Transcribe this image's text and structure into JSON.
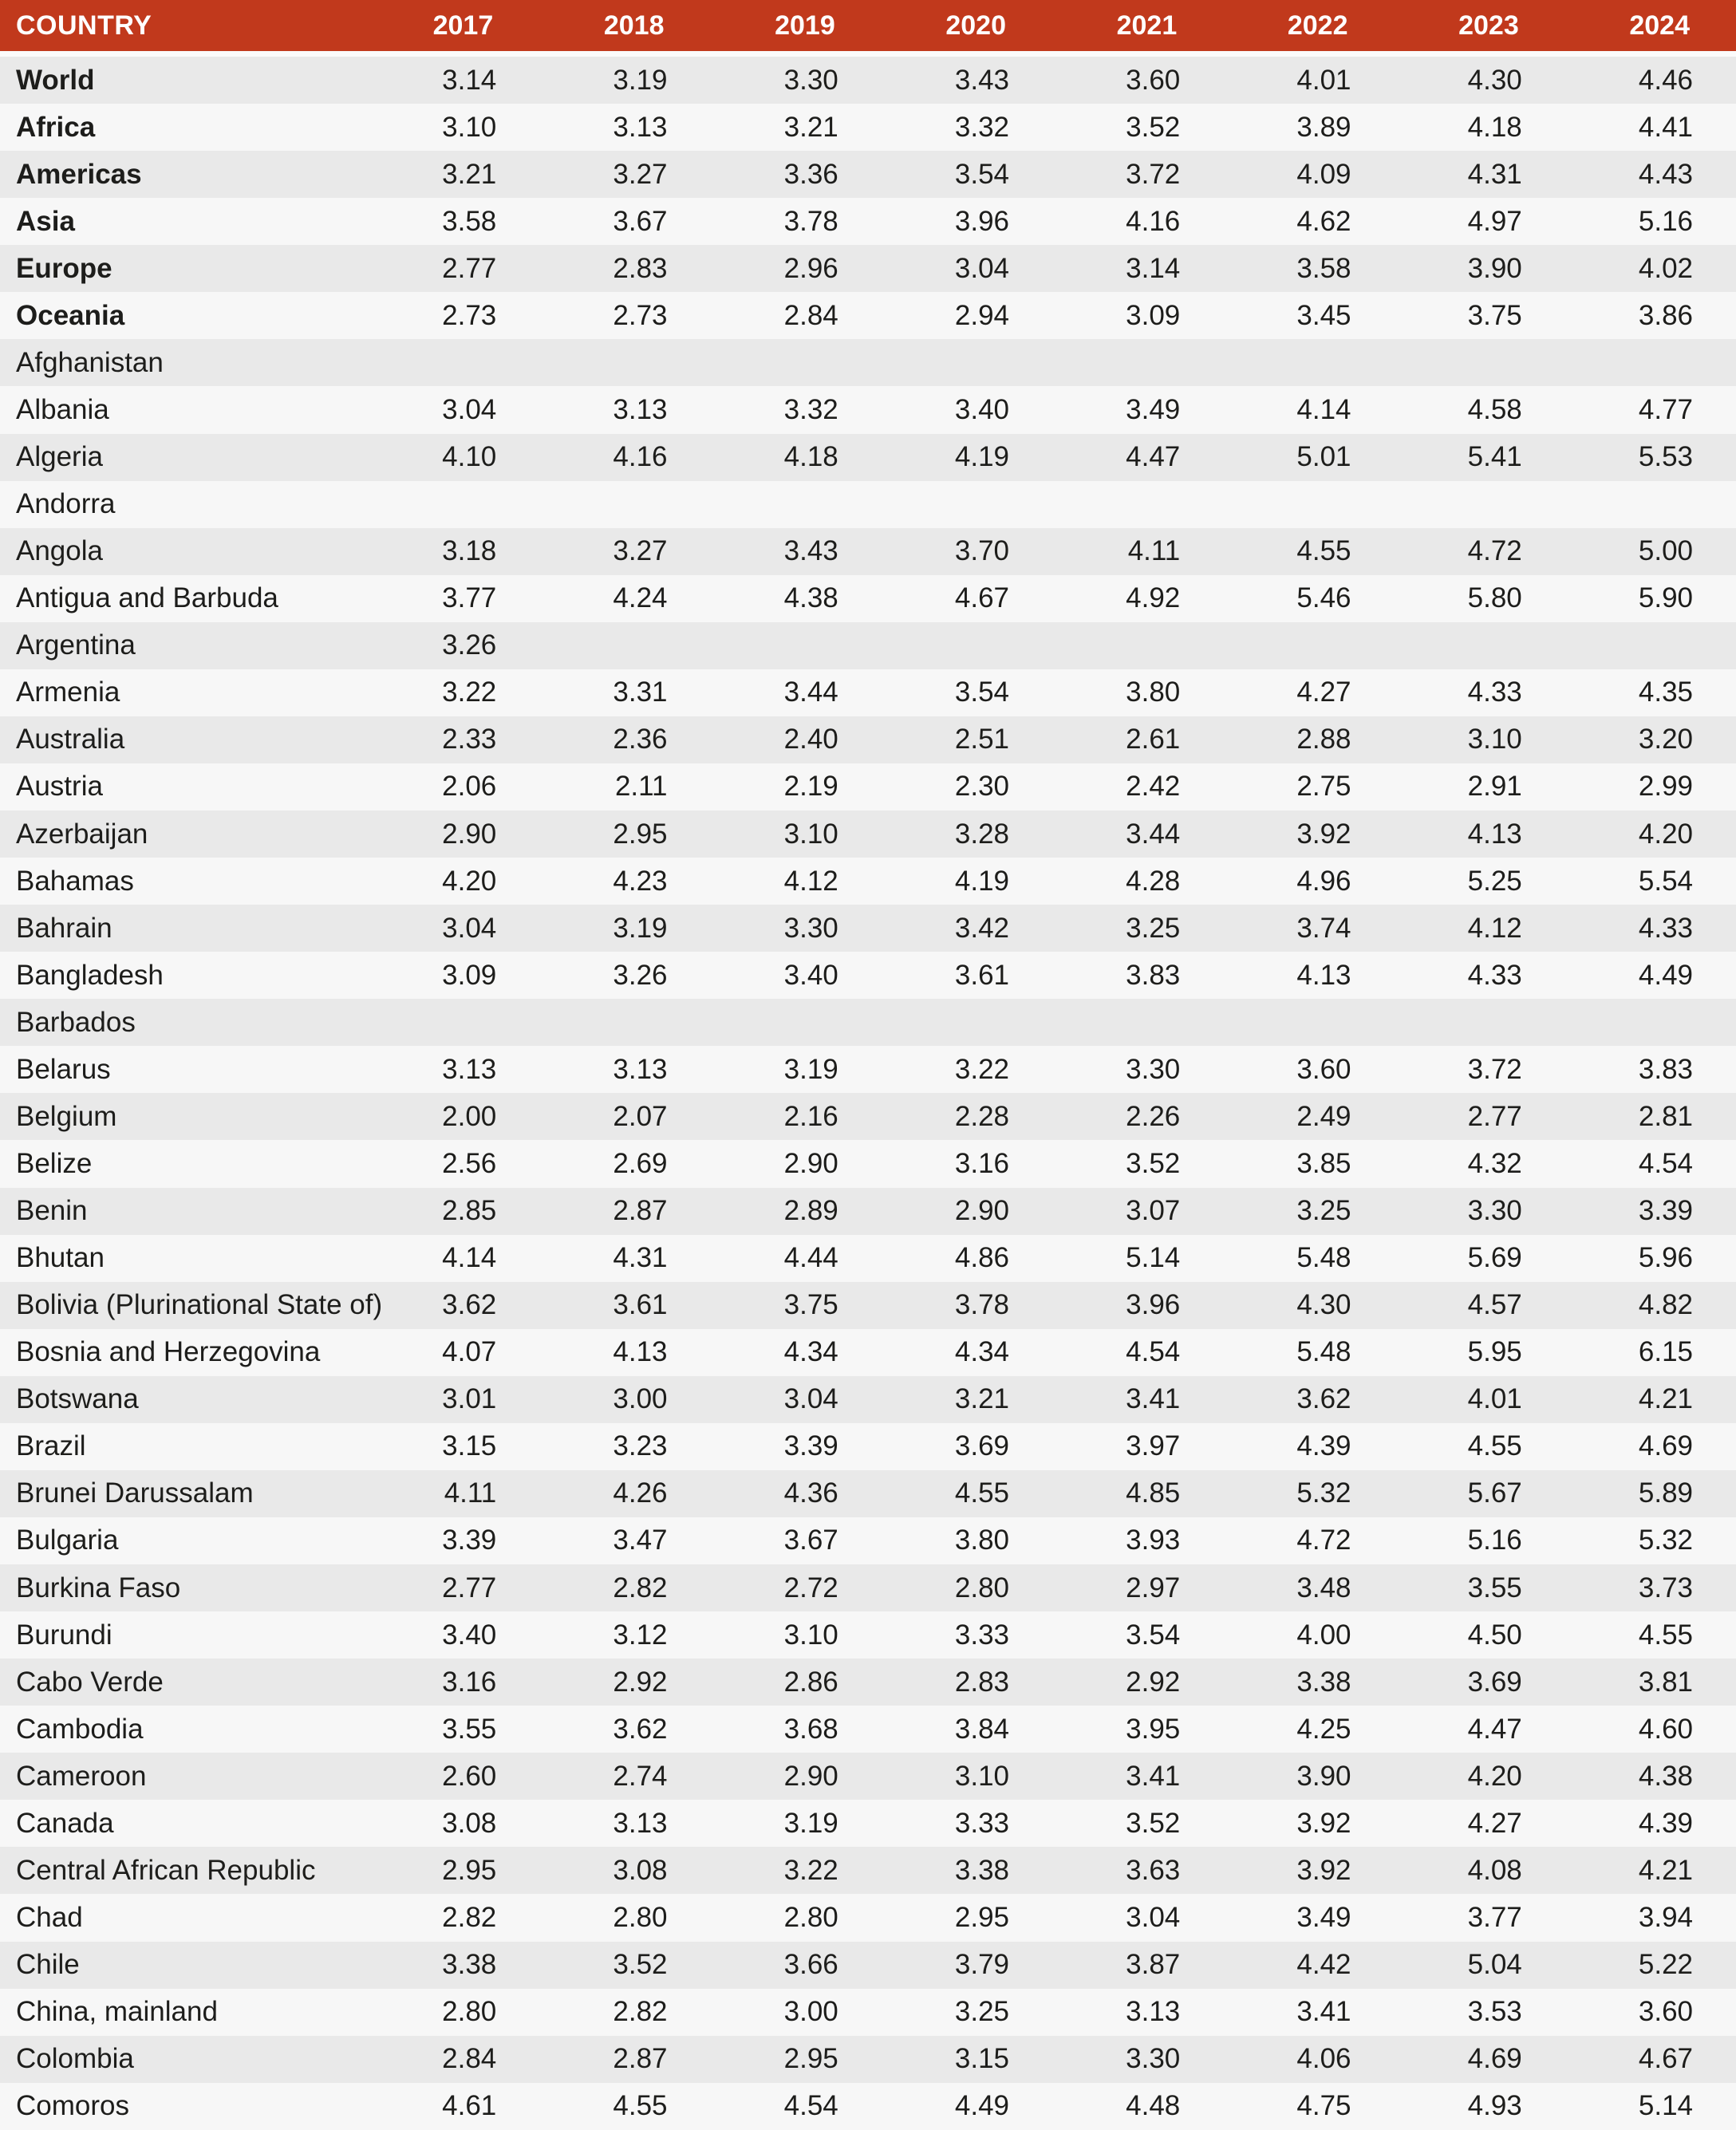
{
  "colors": {
    "header_bg": "#c1391c",
    "header_text": "#ffffff",
    "row_odd": "#e9e9e9",
    "row_even": "#f7f7f7",
    "text": "#1d1d1b"
  },
  "table": {
    "country_header": "COUNTRY",
    "year_headers": [
      "2017",
      "2018",
      "2019",
      "2020",
      "2021",
      "2022",
      "2023",
      "2024"
    ],
    "rows": [
      {
        "country": "World",
        "bold": true,
        "values": [
          "3.14",
          "3.19",
          "3.30",
          "3.43",
          "3.60",
          "4.01",
          "4.30",
          "4.46"
        ]
      },
      {
        "country": "Africa",
        "bold": true,
        "values": [
          "3.10",
          "3.13",
          "3.21",
          "3.32",
          "3.52",
          "3.89",
          "4.18",
          "4.41"
        ]
      },
      {
        "country": "Americas",
        "bold": true,
        "values": [
          "3.21",
          "3.27",
          "3.36",
          "3.54",
          "3.72",
          "4.09",
          "4.31",
          "4.43"
        ]
      },
      {
        "country": "Asia",
        "bold": true,
        "values": [
          "3.58",
          "3.67",
          "3.78",
          "3.96",
          "4.16",
          "4.62",
          "4.97",
          "5.16"
        ]
      },
      {
        "country": "Europe",
        "bold": true,
        "values": [
          "2.77",
          "2.83",
          "2.96",
          "3.04",
          "3.14",
          "3.58",
          "3.90",
          "4.02"
        ]
      },
      {
        "country": "Oceania",
        "bold": true,
        "values": [
          "2.73",
          "2.73",
          "2.84",
          "2.94",
          "3.09",
          "3.45",
          "3.75",
          "3.86"
        ]
      },
      {
        "country": "Afghanistan",
        "bold": false,
        "values": [
          "",
          "",
          "",
          "",
          "",
          "",
          "",
          ""
        ]
      },
      {
        "country": "Albania",
        "bold": false,
        "values": [
          "3.04",
          "3.13",
          "3.32",
          "3.40",
          "3.49",
          "4.14",
          "4.58",
          "4.77"
        ]
      },
      {
        "country": "Algeria",
        "bold": false,
        "values": [
          "4.10",
          "4.16",
          "4.18",
          "4.19",
          "4.47",
          "5.01",
          "5.41",
          "5.53"
        ]
      },
      {
        "country": "Andorra",
        "bold": false,
        "values": [
          "",
          "",
          "",
          "",
          "",
          "",
          "",
          ""
        ]
      },
      {
        "country": "Angola",
        "bold": false,
        "values": [
          "3.18",
          "3.27",
          "3.43",
          "3.70",
          "4.11",
          "4.55",
          "4.72",
          "5.00"
        ]
      },
      {
        "country": "Antigua and Barbuda",
        "bold": false,
        "values": [
          "3.77",
          "4.24",
          "4.38",
          "4.67",
          "4.92",
          "5.46",
          "5.80",
          "5.90"
        ]
      },
      {
        "country": "Argentina",
        "bold": false,
        "values": [
          "3.26",
          "",
          "",
          "",
          "",
          "",
          "",
          ""
        ]
      },
      {
        "country": "Armenia",
        "bold": false,
        "values": [
          "3.22",
          "3.31",
          "3.44",
          "3.54",
          "3.80",
          "4.27",
          "4.33",
          "4.35"
        ]
      },
      {
        "country": "Australia",
        "bold": false,
        "values": [
          "2.33",
          "2.36",
          "2.40",
          "2.51",
          "2.61",
          "2.88",
          "3.10",
          "3.20"
        ]
      },
      {
        "country": "Austria",
        "bold": false,
        "values": [
          "2.06",
          "2.11",
          "2.19",
          "2.30",
          "2.42",
          "2.75",
          "2.91",
          "2.99"
        ]
      },
      {
        "country": "Azerbaijan",
        "bold": false,
        "values": [
          "2.90",
          "2.95",
          "3.10",
          "3.28",
          "3.44",
          "3.92",
          "4.13",
          "4.20"
        ]
      },
      {
        "country": "Bahamas",
        "bold": false,
        "values": [
          "4.20",
          "4.23",
          "4.12",
          "4.19",
          "4.28",
          "4.96",
          "5.25",
          "5.54"
        ]
      },
      {
        "country": "Bahrain",
        "bold": false,
        "values": [
          "3.04",
          "3.19",
          "3.30",
          "3.42",
          "3.25",
          "3.74",
          "4.12",
          "4.33"
        ]
      },
      {
        "country": "Bangladesh",
        "bold": false,
        "values": [
          "3.09",
          "3.26",
          "3.40",
          "3.61",
          "3.83",
          "4.13",
          "4.33",
          "4.49"
        ]
      },
      {
        "country": "Barbados",
        "bold": false,
        "values": [
          "",
          "",
          "",
          "",
          "",
          "",
          "",
          ""
        ]
      },
      {
        "country": "Belarus",
        "bold": false,
        "values": [
          "3.13",
          "3.13",
          "3.19",
          "3.22",
          "3.30",
          "3.60",
          "3.72",
          "3.83"
        ]
      },
      {
        "country": "Belgium",
        "bold": false,
        "values": [
          "2.00",
          "2.07",
          "2.16",
          "2.28",
          "2.26",
          "2.49",
          "2.77",
          "2.81"
        ]
      },
      {
        "country": "Belize",
        "bold": false,
        "values": [
          "2.56",
          "2.69",
          "2.90",
          "3.16",
          "3.52",
          "3.85",
          "4.32",
          "4.54"
        ]
      },
      {
        "country": "Benin",
        "bold": false,
        "values": [
          "2.85",
          "2.87",
          "2.89",
          "2.90",
          "3.07",
          "3.25",
          "3.30",
          "3.39"
        ]
      },
      {
        "country": "Bhutan",
        "bold": false,
        "values": [
          "4.14",
          "4.31",
          "4.44",
          "4.86",
          "5.14",
          "5.48",
          "5.69",
          "5.96"
        ]
      },
      {
        "country": "Bolivia (Plurinational State of)",
        "bold": false,
        "values": [
          "3.62",
          "3.61",
          "3.75",
          "3.78",
          "3.96",
          "4.30",
          "4.57",
          "4.82"
        ]
      },
      {
        "country": "Bosnia and Herzegovina",
        "bold": false,
        "values": [
          "4.07",
          "4.13",
          "4.34",
          "4.34",
          "4.54",
          "5.48",
          "5.95",
          "6.15"
        ]
      },
      {
        "country": "Botswana",
        "bold": false,
        "values": [
          "3.01",
          "3.00",
          "3.04",
          "3.21",
          "3.41",
          "3.62",
          "4.01",
          "4.21"
        ]
      },
      {
        "country": "Brazil",
        "bold": false,
        "values": [
          "3.15",
          "3.23",
          "3.39",
          "3.69",
          "3.97",
          "4.39",
          "4.55",
          "4.69"
        ]
      },
      {
        "country": "Brunei Darussalam",
        "bold": false,
        "values": [
          "4.11",
          "4.26",
          "4.36",
          "4.55",
          "4.85",
          "5.32",
          "5.67",
          "5.89"
        ]
      },
      {
        "country": "Bulgaria",
        "bold": false,
        "values": [
          "3.39",
          "3.47",
          "3.67",
          "3.80",
          "3.93",
          "4.72",
          "5.16",
          "5.32"
        ]
      },
      {
        "country": "Burkina Faso",
        "bold": false,
        "values": [
          "2.77",
          "2.82",
          "2.72",
          "2.80",
          "2.97",
          "3.48",
          "3.55",
          "3.73"
        ]
      },
      {
        "country": "Burundi",
        "bold": false,
        "values": [
          "3.40",
          "3.12",
          "3.10",
          "3.33",
          "3.54",
          "4.00",
          "4.50",
          "4.55"
        ]
      },
      {
        "country": "Cabo Verde",
        "bold": false,
        "values": [
          "3.16",
          "2.92",
          "2.86",
          "2.83",
          "2.92",
          "3.38",
          "3.69",
          "3.81"
        ]
      },
      {
        "country": "Cambodia",
        "bold": false,
        "values": [
          "3.55",
          "3.62",
          "3.68",
          "3.84",
          "3.95",
          "4.25",
          "4.47",
          "4.60"
        ]
      },
      {
        "country": "Cameroon",
        "bold": false,
        "values": [
          "2.60",
          "2.74",
          "2.90",
          "3.10",
          "3.41",
          "3.90",
          "4.20",
          "4.38"
        ]
      },
      {
        "country": "Canada",
        "bold": false,
        "values": [
          "3.08",
          "3.13",
          "3.19",
          "3.33",
          "3.52",
          "3.92",
          "4.27",
          "4.39"
        ]
      },
      {
        "country": "Central African Republic",
        "bold": false,
        "values": [
          "2.95",
          "3.08",
          "3.22",
          "3.38",
          "3.63",
          "3.92",
          "4.08",
          "4.21"
        ]
      },
      {
        "country": "Chad",
        "bold": false,
        "values": [
          "2.82",
          "2.80",
          "2.80",
          "2.95",
          "3.04",
          "3.49",
          "3.77",
          "3.94"
        ]
      },
      {
        "country": "Chile",
        "bold": false,
        "values": [
          "3.38",
          "3.52",
          "3.66",
          "3.79",
          "3.87",
          "4.42",
          "5.04",
          "5.22"
        ]
      },
      {
        "country": "China, mainland",
        "bold": false,
        "values": [
          "2.80",
          "2.82",
          "3.00",
          "3.25",
          "3.13",
          "3.41",
          "3.53",
          "3.60"
        ]
      },
      {
        "country": "Colombia",
        "bold": false,
        "values": [
          "2.84",
          "2.87",
          "2.95",
          "3.15",
          "3.30",
          "4.06",
          "4.69",
          "4.67"
        ]
      },
      {
        "country": "Comoros",
        "bold": false,
        "values": [
          "4.61",
          "4.55",
          "4.54",
          "4.49",
          "4.48",
          "4.75",
          "4.93",
          "5.14"
        ]
      }
    ]
  }
}
